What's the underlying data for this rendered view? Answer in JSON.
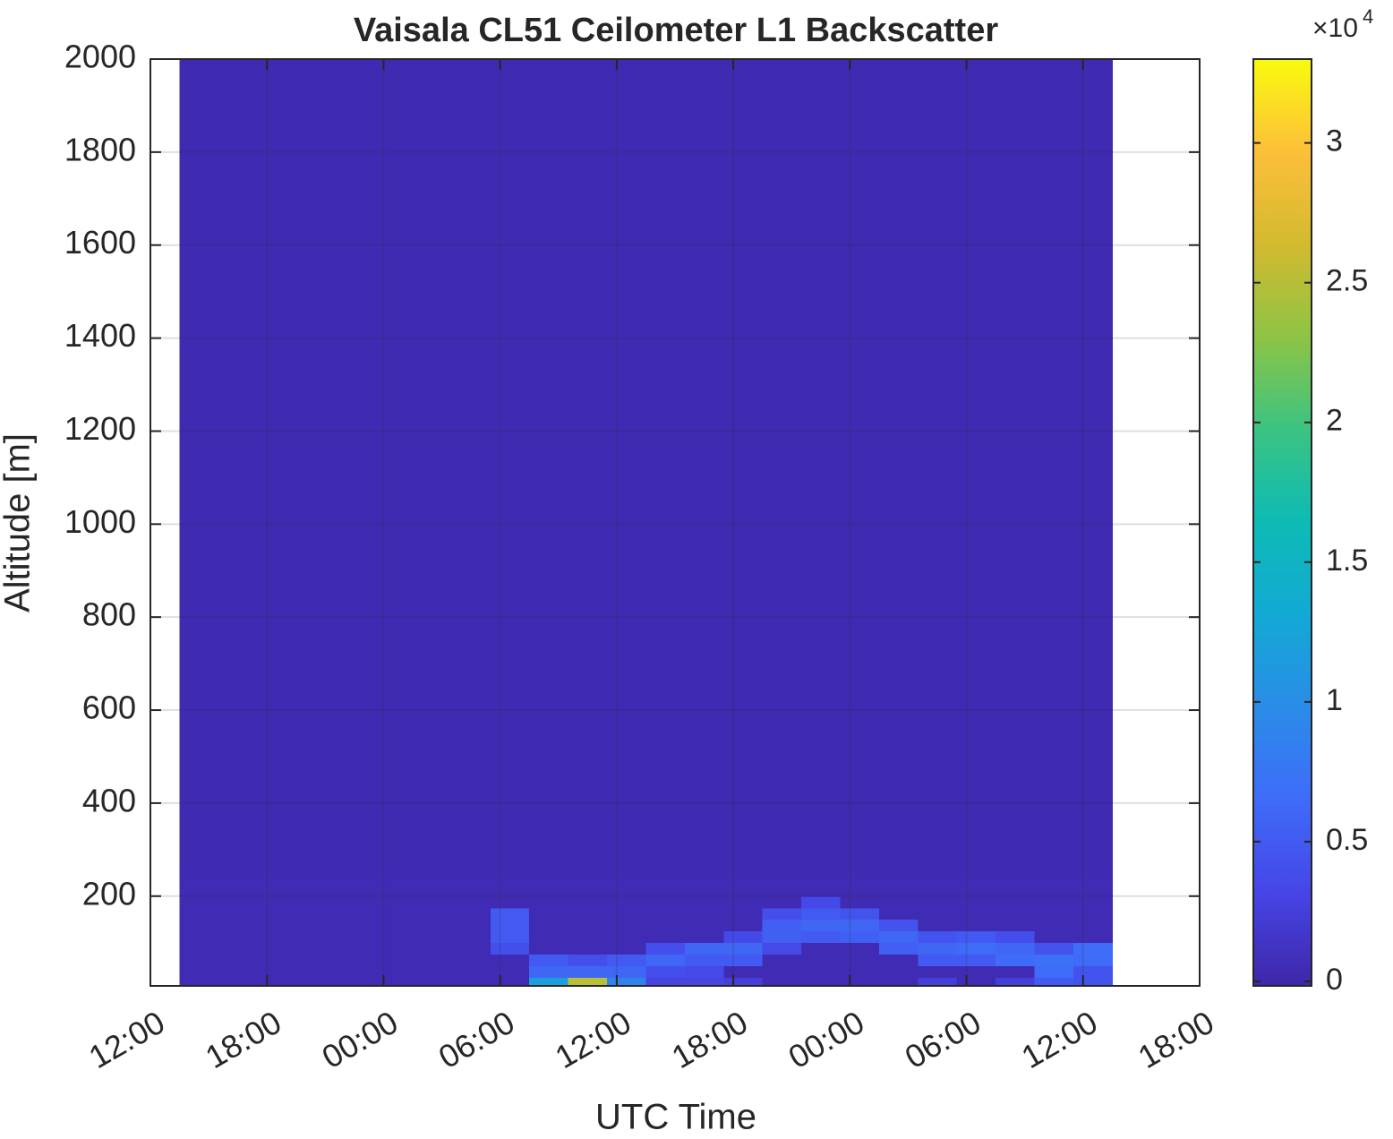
{
  "chart_data": {
    "type": "heatmap",
    "title": "Vaisala CL51 Ceilometer L1 Backscatter",
    "xlabel": "UTC Time",
    "ylabel": "Altitude [m]",
    "xlim": [
      0,
      54
    ],
    "xticks": [
      {
        "value": 0,
        "label": "12:00"
      },
      {
        "value": 6,
        "label": "18:00"
      },
      {
        "value": 12,
        "label": "00:00"
      },
      {
        "value": 18,
        "label": "06:00"
      },
      {
        "value": 24,
        "label": "12:00"
      },
      {
        "value": 30,
        "label": "18:00"
      },
      {
        "value": 36,
        "label": "00:00"
      },
      {
        "value": 42,
        "label": "06:00"
      },
      {
        "value": 48,
        "label": "12:00"
      },
      {
        "value": 54,
        "label": "18:00"
      }
    ],
    "ylim": [
      7,
      2000
    ],
    "yticks": [
      200,
      400,
      600,
      800,
      1000,
      1200,
      1400,
      1600,
      1800,
      2000
    ],
    "grid": true,
    "x_edges": [
      1.5,
      3.5,
      5.5,
      7.5,
      9.5,
      11.5,
      13.5,
      15.5,
      17.5,
      19.5,
      21.5,
      23.5,
      25.5,
      27.5,
      29.5,
      31.5,
      33.5,
      35.5,
      37.5,
      39.5,
      41.5,
      43.5,
      45.5,
      47.5,
      49.5
    ],
    "y_edges": [
      7,
      25,
      50,
      75,
      100,
      125,
      150,
      175,
      200,
      250,
      2000
    ],
    "z": [
      [
        500,
        500,
        500,
        500,
        500,
        500,
        500,
        500,
        500,
        12000,
        25000,
        9000,
        3000,
        3000,
        2500,
        500,
        500,
        500,
        500,
        2500,
        500,
        2500,
        5000,
        4500
      ],
      [
        500,
        500,
        500,
        500,
        500,
        500,
        500,
        500,
        500,
        6000,
        6000,
        6000,
        4000,
        3500,
        500,
        500,
        500,
        500,
        500,
        500,
        500,
        500,
        6500,
        4500
      ],
      [
        500,
        500,
        500,
        500,
        500,
        500,
        500,
        500,
        500,
        5000,
        4000,
        5000,
        6000,
        5000,
        5000,
        500,
        500,
        500,
        500,
        5000,
        5000,
        6500,
        7000,
        6500
      ],
      [
        500,
        500,
        500,
        500,
        500,
        500,
        500,
        500,
        4000,
        500,
        500,
        500,
        4000,
        6000,
        6000,
        3500,
        500,
        500,
        5500,
        6000,
        6500,
        6000,
        4500,
        6500
      ],
      [
        500,
        500,
        500,
        500,
        500,
        500,
        500,
        500,
        5000,
        500,
        500,
        500,
        500,
        500,
        3500,
        5500,
        5000,
        5500,
        6000,
        4500,
        5000,
        4000,
        500,
        500
      ],
      [
        500,
        500,
        500,
        500,
        500,
        500,
        500,
        500,
        5000,
        500,
        500,
        500,
        500,
        500,
        500,
        5500,
        6000,
        6000,
        4500,
        500,
        500,
        500,
        500,
        500
      ],
      [
        500,
        500,
        500,
        500,
        500,
        500,
        500,
        500,
        5000,
        500,
        500,
        500,
        500,
        500,
        500,
        4000,
        5000,
        4500,
        500,
        500,
        500,
        500,
        500,
        500
      ],
      [
        500,
        500,
        500,
        500,
        500,
        500,
        500,
        500,
        500,
        500,
        500,
        500,
        500,
        500,
        500,
        500,
        3500,
        500,
        500,
        500,
        500,
        500,
        500,
        500
      ],
      [
        500,
        500,
        500,
        500,
        500,
        500,
        500,
        500,
        500,
        500,
        500,
        500,
        500,
        500,
        500,
        500,
        500,
        500,
        500,
        500,
        500,
        500,
        500,
        500
      ],
      [
        400,
        400,
        400,
        400,
        400,
        400,
        400,
        400,
        400,
        400,
        400,
        400,
        400,
        400,
        400,
        400,
        400,
        400,
        400,
        400,
        400,
        400,
        400,
        400
      ]
    ],
    "colormap": [
      "#3e26a8",
      "#4645e6",
      "#3f6bf9",
      "#2a8ce8",
      "#13a9d5",
      "#0dbbb5",
      "#3bc382",
      "#8ec444",
      "#d3ba2f",
      "#fdbf3a",
      "#f9fb0e"
    ],
    "colorbar": {
      "clim": [
        -160,
        33000
      ],
      "ticks": [
        {
          "value": 0,
          "label": "0"
        },
        {
          "value": 5000,
          "label": "0.5"
        },
        {
          "value": 10000,
          "label": "1"
        },
        {
          "value": 15000,
          "label": "1.5"
        },
        {
          "value": 20000,
          "label": "2"
        },
        {
          "value": 25000,
          "label": "2.5"
        },
        {
          "value": 30000,
          "label": "3"
        }
      ],
      "exponent_base": "×10",
      "exponent": "4"
    }
  }
}
